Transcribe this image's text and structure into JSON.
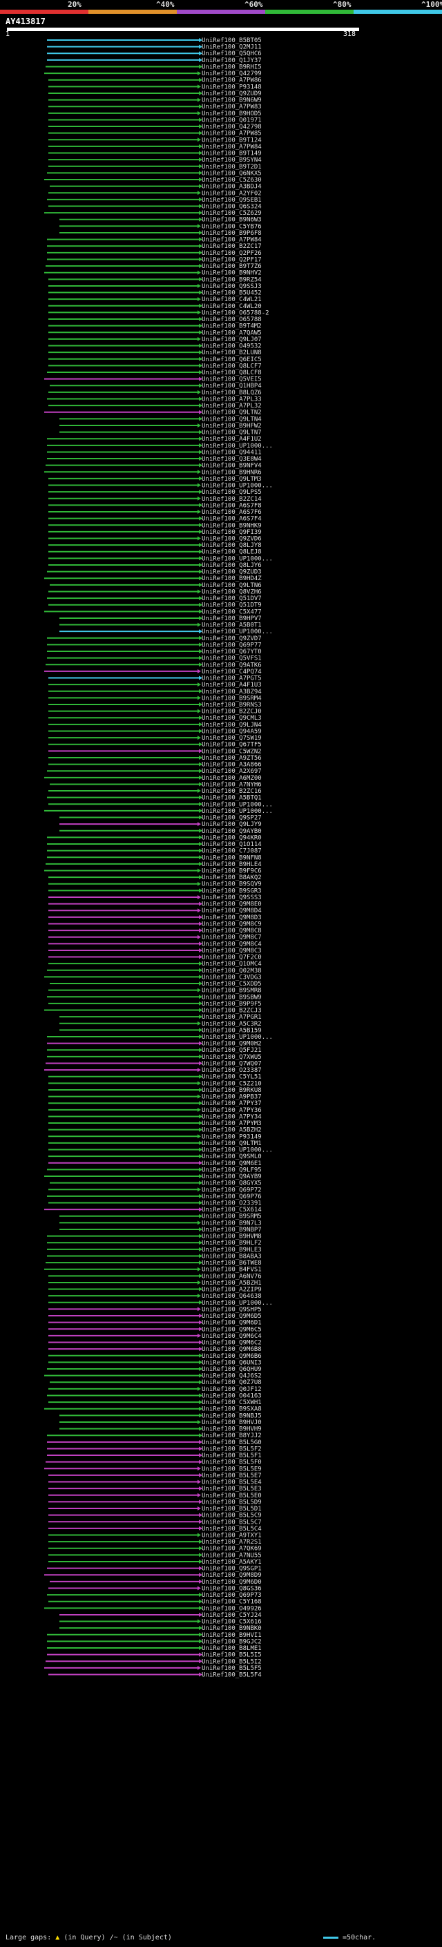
{
  "query_id": "AY413817",
  "ruler": {
    "start": "1",
    "end": "318"
  },
  "identity_scale": [
    {
      "label": "20%",
      "color": "#e03030"
    },
    {
      "label": "^40%",
      "color": "#e0902a"
    },
    {
      "label": "^60%",
      "color": "#a04ac8"
    },
    {
      "label": "^80%",
      "color": "#30b838"
    },
    {
      "label": "^100%",
      "color": "#40c8e8"
    }
  ],
  "footer": {
    "large_gaps": "Large gaps:",
    "in_query": "(in Query)",
    "in_subject": "/~ (in Subject)",
    "scale": "=50char."
  },
  "colors": {
    "cyan": "#40c8e8",
    "green": "#30b838",
    "magenta": "#c040c0",
    "background": "#000000"
  },
  "hits": [
    {
      "label": "UniRef100_B5BT05",
      "color": "cyan"
    },
    {
      "label": "UniRef100_Q2MJ11",
      "color": "cyan"
    },
    {
      "label": "UniRef100_Q5QHC6",
      "color": "cyan"
    },
    {
      "label": "UniRef100_Q1JY37",
      "color": "cyan"
    },
    {
      "label": "UniRef100_B9RHI5",
      "color": "green"
    },
    {
      "label": "UniRef100_Q42799",
      "color": "green"
    },
    {
      "label": "UniRef100_A7PW86",
      "color": "green"
    },
    {
      "label": "UniRef100_P93148",
      "color": "green"
    },
    {
      "label": "UniRef100_Q9ZUD9",
      "color": "green"
    },
    {
      "label": "UniRef100_B9N6W9",
      "color": "green"
    },
    {
      "label": "UniRef100_A7PW83",
      "color": "green"
    },
    {
      "label": "UniRef100_B9HOD5",
      "color": "green"
    },
    {
      "label": "UniRef100_Q01971",
      "color": "green"
    },
    {
      "label": "UniRef100_Q42798",
      "color": "green"
    },
    {
      "label": "UniRef100_A7PW85",
      "color": "green"
    },
    {
      "label": "UniRef100_B9T124",
      "color": "green"
    },
    {
      "label": "UniRef100_A7PW84",
      "color": "green"
    },
    {
      "label": "UniRef100_B9T149",
      "color": "green"
    },
    {
      "label": "UniRef100_B9SYN4",
      "color": "green"
    },
    {
      "label": "UniRef100_B9T2D1",
      "color": "green"
    },
    {
      "label": "UniRef100_Q6NKX5",
      "color": "green"
    },
    {
      "label": "UniRef100_C5Z630",
      "color": "green"
    },
    {
      "label": "UniRef100_A3BDJ4",
      "color": "green"
    },
    {
      "label": "UniRef100_A2YF02",
      "color": "green"
    },
    {
      "label": "UniRef100_Q9SEB1",
      "color": "green"
    },
    {
      "label": "UniRef100_Q6S324",
      "color": "green"
    },
    {
      "label": "UniRef100_C5Z629",
      "color": "green"
    },
    {
      "label": "UniRef100_B9N6W3",
      "color": "green"
    },
    {
      "label": "UniRef100_C5YB76",
      "color": "green"
    },
    {
      "label": "UniRef100_B9P6F8",
      "color": "green"
    },
    {
      "label": "UniRef100_A7PW84",
      "color": "green"
    },
    {
      "label": "UniRef100_B2ZC17",
      "color": "green"
    },
    {
      "label": "UniRef100_Q2PF26",
      "color": "green"
    },
    {
      "label": "UniRef100_Q2PF17",
      "color": "green"
    },
    {
      "label": "UniRef100_B9T7Z6",
      "color": "green"
    },
    {
      "label": "UniRef100_B9NHV2",
      "color": "green"
    },
    {
      "label": "UniRef100_B9RZ54",
      "color": "green"
    },
    {
      "label": "UniRef100_Q9SSJ3",
      "color": "green"
    },
    {
      "label": "UniRef100_B5U452",
      "color": "green"
    },
    {
      "label": "UniRef100_C4WL21",
      "color": "green"
    },
    {
      "label": "UniRef100_C4WL20",
      "color": "green"
    },
    {
      "label": "UniRef100_O65788-2",
      "color": "green"
    },
    {
      "label": "UniRef100_O65788",
      "color": "green"
    },
    {
      "label": "UniRef100_B9T4M2",
      "color": "green"
    },
    {
      "label": "UniRef100_A7QAW5",
      "color": "green"
    },
    {
      "label": "UniRef100_Q9LJ07",
      "color": "green"
    },
    {
      "label": "UniRef100_O49532",
      "color": "green"
    },
    {
      "label": "UniRef100_B2LUN8",
      "color": "green"
    },
    {
      "label": "UniRef100_Q6EIC5",
      "color": "green"
    },
    {
      "label": "UniRef100_Q8LCF7",
      "color": "green"
    },
    {
      "label": "UniRef100_Q8LCF8",
      "color": "green"
    },
    {
      "label": "UniRef100_Q5VEI5",
      "color": "magenta"
    },
    {
      "label": "UniRef100_Q1HBP4",
      "color": "green"
    },
    {
      "label": "UniRef100_B8LQZ6",
      "color": "green"
    },
    {
      "label": "UniRef100_A7PL33",
      "color": "green"
    },
    {
      "label": "UniRef100_A7PL32",
      "color": "green"
    },
    {
      "label": "UniRef100_Q9LTN2",
      "color": "magenta"
    },
    {
      "label": "UniRef100_Q9LTN4",
      "color": "green"
    },
    {
      "label": "UniRef100_B9HFW2",
      "color": "green"
    },
    {
      "label": "UniRef100_Q9LTN7",
      "color": "green"
    },
    {
      "label": "UniRef100_A4F1U2",
      "color": "green"
    },
    {
      "label": "UniRef100_UP1000...",
      "color": "green"
    },
    {
      "label": "UniRef100_Q94411",
      "color": "green"
    },
    {
      "label": "UniRef100_Q3E8W4",
      "color": "green"
    },
    {
      "label": "UniRef100_B9NFV4",
      "color": "green"
    },
    {
      "label": "UniRef100_B9HNR6",
      "color": "green"
    },
    {
      "label": "UniRef100_Q9LTM3",
      "color": "green"
    },
    {
      "label": "UniRef100_UP1000...",
      "color": "green"
    },
    {
      "label": "UniRef100_Q9LPS5",
      "color": "green"
    },
    {
      "label": "UniRef100_B2ZC14",
      "color": "green"
    },
    {
      "label": "UniRef100_A6S7F8",
      "color": "green"
    },
    {
      "label": "UniRef100_A6S7F6",
      "color": "green"
    },
    {
      "label": "UniRef100_A6S7F4",
      "color": "green"
    },
    {
      "label": "UniRef100_B9NHK9",
      "color": "green"
    },
    {
      "label": "UniRef100_Q9FI39",
      "color": "green"
    },
    {
      "label": "UniRef100_Q9ZVD6",
      "color": "green"
    },
    {
      "label": "UniRef100_Q8LJY8",
      "color": "green"
    },
    {
      "label": "UniRef100_Q8LEJ8",
      "color": "green"
    },
    {
      "label": "UniRef100_UP1000...",
      "color": "green"
    },
    {
      "label": "UniRef100_Q8LJY6",
      "color": "green"
    },
    {
      "label": "UniRef100_Q9ZUD3",
      "color": "green"
    },
    {
      "label": "UniRef100_B9HD4Z",
      "color": "green"
    },
    {
      "label": "UniRef100_Q9LTN6",
      "color": "green"
    },
    {
      "label": "UniRef100_Q8VZH6",
      "color": "green"
    },
    {
      "label": "UniRef100_Q51DV7",
      "color": "green"
    },
    {
      "label": "UniRef100_Q51DT9",
      "color": "green"
    },
    {
      "label": "UniRef100_C5X477",
      "color": "green"
    },
    {
      "label": "UniRef100_B9HPV7",
      "color": "green"
    },
    {
      "label": "UniRef100_A5B0T1",
      "color": "green"
    },
    {
      "label": "UniRef100_UP1000...",
      "color": "cyan"
    },
    {
      "label": "UniRef100_Q9ZVD7",
      "color": "green"
    },
    {
      "label": "UniRef100_Q69P77",
      "color": "green"
    },
    {
      "label": "UniRef100_Q67YT0",
      "color": "green"
    },
    {
      "label": "UniRef100_Q5VFS1",
      "color": "green"
    },
    {
      "label": "UniRef100_Q9ATK6",
      "color": "green"
    },
    {
      "label": "UniRef100_C4PQ74",
      "color": "magenta"
    },
    {
      "label": "UniRef100_A7PGT5",
      "color": "cyan"
    },
    {
      "label": "UniRef100_A4F1U3",
      "color": "green"
    },
    {
      "label": "UniRef100_A3BZ94",
      "color": "green"
    },
    {
      "label": "UniRef100_B9SRM4",
      "color": "green"
    },
    {
      "label": "UniRef100_B9RNS3",
      "color": "green"
    },
    {
      "label": "UniRef100_B2ZCJ0",
      "color": "green"
    },
    {
      "label": "UniRef100_Q9CML3",
      "color": "green"
    },
    {
      "label": "UniRef100_Q9LJN4",
      "color": "green"
    },
    {
      "label": "UniRef100_Q94A59",
      "color": "green"
    },
    {
      "label": "UniRef100_Q7SW19",
      "color": "green"
    },
    {
      "label": "UniRef100_Q67TF5",
      "color": "green"
    },
    {
      "label": "UniRef100_C5WZN2",
      "color": "magenta"
    },
    {
      "label": "UniRef100_A9ZT56",
      "color": "green"
    },
    {
      "label": "UniRef100_A3A866",
      "color": "green"
    },
    {
      "label": "UniRef100_A2X697",
      "color": "green"
    },
    {
      "label": "UniRef100_A6MZ00",
      "color": "green"
    },
    {
      "label": "UniRef100_A7NYH6",
      "color": "green"
    },
    {
      "label": "UniRef100_B2ZC16",
      "color": "green"
    },
    {
      "label": "UniRef100_A5BTQ1",
      "color": "green"
    },
    {
      "label": "UniRef100_UP1000...",
      "color": "green"
    },
    {
      "label": "UniRef100_UP1000...",
      "color": "green"
    },
    {
      "label": "UniRef100_Q9SP27",
      "color": "green"
    },
    {
      "label": "UniRef100_Q9LJY9",
      "color": "magenta"
    },
    {
      "label": "UniRef100_Q9AYB0",
      "color": "green"
    },
    {
      "label": "UniRef100_Q94KR0",
      "color": "green"
    },
    {
      "label": "UniRef100_Q1O114",
      "color": "green"
    },
    {
      "label": "UniRef100_C7J087",
      "color": "green"
    },
    {
      "label": "UniRef100_B9NFN8",
      "color": "green"
    },
    {
      "label": "UniRef100_B9HLE4",
      "color": "green"
    },
    {
      "label": "UniRef100_B9F9C6",
      "color": "green"
    },
    {
      "label": "UniRef100_B8AKQ2",
      "color": "green"
    },
    {
      "label": "UniRef100_B9SQV9",
      "color": "green"
    },
    {
      "label": "UniRef100_B9SGR3",
      "color": "green"
    },
    {
      "label": "UniRef100_Q9SSS3",
      "color": "magenta"
    },
    {
      "label": "UniRef100_Q9M8E0",
      "color": "magenta"
    },
    {
      "label": "UniRef100_Q9M8D4",
      "color": "magenta"
    },
    {
      "label": "UniRef100_Q9M8D3",
      "color": "magenta"
    },
    {
      "label": "UniRef100_Q9M8C9",
      "color": "magenta"
    },
    {
      "label": "UniRef100_Q9M8C8",
      "color": "magenta"
    },
    {
      "label": "UniRef100_Q9M8C7",
      "color": "magenta"
    },
    {
      "label": "UniRef100_Q9M8C4",
      "color": "magenta"
    },
    {
      "label": "UniRef100_Q9M8C3",
      "color": "magenta"
    },
    {
      "label": "UniRef100_Q7F2C0",
      "color": "magenta"
    },
    {
      "label": "UniRef100_Q1OMC4",
      "color": "green"
    },
    {
      "label": "UniRef100_Q02M38",
      "color": "green"
    },
    {
      "label": "UniRef100_C3VDG3",
      "color": "green"
    },
    {
      "label": "UniRef100_C5XDD5",
      "color": "green"
    },
    {
      "label": "UniRef100_B9SMR8",
      "color": "green"
    },
    {
      "label": "UniRef100_B9SBW9",
      "color": "green"
    },
    {
      "label": "UniRef100_B9P9F5",
      "color": "green"
    },
    {
      "label": "UniRef100_B2ZCJ3",
      "color": "green"
    },
    {
      "label": "UniRef100_A7PGR1",
      "color": "green"
    },
    {
      "label": "UniRef100_A5C3R2",
      "color": "green"
    },
    {
      "label": "UniRef100_A5B159",
      "color": "green"
    },
    {
      "label": "UniRef100_UP1000...",
      "color": "green"
    },
    {
      "label": "UniRef100_Q9M0H2",
      "color": "magenta"
    },
    {
      "label": "UniRef100_Q5FJ21",
      "color": "green"
    },
    {
      "label": "UniRef100_Q7XWU5",
      "color": "green"
    },
    {
      "label": "UniRef100_Q7WQ07",
      "color": "magenta"
    },
    {
      "label": "UniRef100_O23387",
      "color": "magenta"
    },
    {
      "label": "UniRef100_C5YL51",
      "color": "green"
    },
    {
      "label": "UniRef100_C5Z210",
      "color": "green"
    },
    {
      "label": "UniRef100_B9RKU8",
      "color": "green"
    },
    {
      "label": "UniRef100_A9PB37",
      "color": "green"
    },
    {
      "label": "UniRef100_A7PY37",
      "color": "green"
    },
    {
      "label": "UniRef100_A7PY36",
      "color": "green"
    },
    {
      "label": "UniRef100_A7PY34",
      "color": "green"
    },
    {
      "label": "UniRef100_A7PYM3",
      "color": "green"
    },
    {
      "label": "UniRef100_A5BZH2",
      "color": "green"
    },
    {
      "label": "UniRef100_P93149",
      "color": "green"
    },
    {
      "label": "UniRef100_Q9LTM1",
      "color": "green"
    },
    {
      "label": "UniRef100_UP1000...",
      "color": "green"
    },
    {
      "label": "UniRef100_Q9SML0",
      "color": "green"
    },
    {
      "label": "UniRef100_Q9M6E1",
      "color": "magenta"
    },
    {
      "label": "UniRef100_Q9LF95",
      "color": "green"
    },
    {
      "label": "UniRef100_Q9AYB9",
      "color": "green"
    },
    {
      "label": "UniRef100_Q8GYX5",
      "color": "green"
    },
    {
      "label": "UniRef100_Q69P72",
      "color": "green"
    },
    {
      "label": "UniRef100_Q69P76",
      "color": "green"
    },
    {
      "label": "UniRef100_O23391",
      "color": "green"
    },
    {
      "label": "UniRef100_C5X614",
      "color": "magenta"
    },
    {
      "label": "UniRef100_B9SRM5",
      "color": "green"
    },
    {
      "label": "UniRef100_B9N7L3",
      "color": "green"
    },
    {
      "label": "UniRef100_B9NBP7",
      "color": "green"
    },
    {
      "label": "UniRef100_B9HVM8",
      "color": "green"
    },
    {
      "label": "UniRef100_B9HLF2",
      "color": "green"
    },
    {
      "label": "UniRef100_B9HLE3",
      "color": "green"
    },
    {
      "label": "UniRef100_B8ABA3",
      "color": "green"
    },
    {
      "label": "UniRef100_B6TWE8",
      "color": "green"
    },
    {
      "label": "UniRef100_B4FVS1",
      "color": "green"
    },
    {
      "label": "UniRef100_A6NV76",
      "color": "green"
    },
    {
      "label": "UniRef100_A5BZH1",
      "color": "green"
    },
    {
      "label": "UniRef100_A2ZIP9",
      "color": "green"
    },
    {
      "label": "UniRef100_Q64638",
      "color": "green"
    },
    {
      "label": "UniRef100_UP1000...",
      "color": "green"
    },
    {
      "label": "UniRef100_Q9SHP5",
      "color": "magenta"
    },
    {
      "label": "UniRef100_Q9M6D5",
      "color": "magenta"
    },
    {
      "label": "UniRef100_Q9M6D1",
      "color": "magenta"
    },
    {
      "label": "UniRef100_Q9M6C5",
      "color": "magenta"
    },
    {
      "label": "UniRef100_Q9M6C4",
      "color": "magenta"
    },
    {
      "label": "UniRef100_Q9M6C2",
      "color": "magenta"
    },
    {
      "label": "UniRef100_Q9M6B8",
      "color": "magenta"
    },
    {
      "label": "UniRef100_Q9M6B6",
      "color": "green"
    },
    {
      "label": "UniRef100_Q6UNI3",
      "color": "green"
    },
    {
      "label": "UniRef100_Q6QHU9",
      "color": "green"
    },
    {
      "label": "UniRef100_Q4J6S2",
      "color": "green"
    },
    {
      "label": "UniRef100_Q0Z7U8",
      "color": "green"
    },
    {
      "label": "UniRef100_Q0JF12",
      "color": "green"
    },
    {
      "label": "UniRef100_O04163",
      "color": "green"
    },
    {
      "label": "UniRef100_C5XWH1",
      "color": "green"
    },
    {
      "label": "UniRef100_B9SXA8",
      "color": "green"
    },
    {
      "label": "UniRef100_B9NBJ5",
      "color": "green"
    },
    {
      "label": "UniRef100_B9HVJ0",
      "color": "green"
    },
    {
      "label": "UniRef100_B9HVH9",
      "color": "green"
    },
    {
      "label": "UniRef100_B8YJJ2",
      "color": "green"
    },
    {
      "label": "UniRef100_B5L5G0",
      "color": "magenta"
    },
    {
      "label": "UniRef100_B5L5F2",
      "color": "magenta"
    },
    {
      "label": "UniRef100_B5L5F1",
      "color": "magenta"
    },
    {
      "label": "UniRef100_B5L5F0",
      "color": "magenta"
    },
    {
      "label": "UniRef100_B5L5E9",
      "color": "magenta"
    },
    {
      "label": "UniRef100_B5L5E7",
      "color": "magenta"
    },
    {
      "label": "UniRef100_B5L5E4",
      "color": "magenta"
    },
    {
      "label": "UniRef100_B5L5E3",
      "color": "magenta"
    },
    {
      "label": "UniRef100_B5L5E0",
      "color": "magenta"
    },
    {
      "label": "UniRef100_B5L5D9",
      "color": "magenta"
    },
    {
      "label": "UniRef100_B5L5D1",
      "color": "magenta"
    },
    {
      "label": "UniRef100_B5L5C9",
      "color": "magenta"
    },
    {
      "label": "UniRef100_B5L5C7",
      "color": "magenta"
    },
    {
      "label": "UniRef100_B5L5C4",
      "color": "magenta"
    },
    {
      "label": "UniRef100_A9TXY1",
      "color": "green"
    },
    {
      "label": "UniRef100_A7R2S1",
      "color": "green"
    },
    {
      "label": "UniRef100_A7QK69",
      "color": "green"
    },
    {
      "label": "UniRef100_A7NU55",
      "color": "green"
    },
    {
      "label": "UniRef100_A5AKY1",
      "color": "green"
    },
    {
      "label": "UniRef100_Q9SGP1",
      "color": "magenta"
    },
    {
      "label": "UniRef100_Q9M8D9",
      "color": "magenta"
    },
    {
      "label": "UniRef100_Q9M6D0",
      "color": "magenta"
    },
    {
      "label": "UniRef100_Q8GS36",
      "color": "magenta"
    },
    {
      "label": "UniRef100_Q69P73",
      "color": "green"
    },
    {
      "label": "UniRef100_C5Y168",
      "color": "green"
    },
    {
      "label": "UniRef100_O49926",
      "color": "green"
    },
    {
      "label": "UniRef100_C5YJ24",
      "color": "magenta"
    },
    {
      "label": "UniRef100_C5X616",
      "color": "green"
    },
    {
      "label": "UniRef100_B9NBK0",
      "color": "green"
    },
    {
      "label": "UniRef100_B9HVI1",
      "color": "green"
    },
    {
      "label": "UniRef100_B9GJC2",
      "color": "green"
    },
    {
      "label": "UniRef100_B8LME1",
      "color": "green"
    },
    {
      "label": "UniRef100_B5L5I5",
      "color": "magenta"
    },
    {
      "label": "UniRef100_B5L5I2",
      "color": "magenta"
    },
    {
      "label": "UniRef100_B5L5F5",
      "color": "magenta"
    },
    {
      "label": "UniRef100_B5L5F4",
      "color": "magenta"
    }
  ]
}
